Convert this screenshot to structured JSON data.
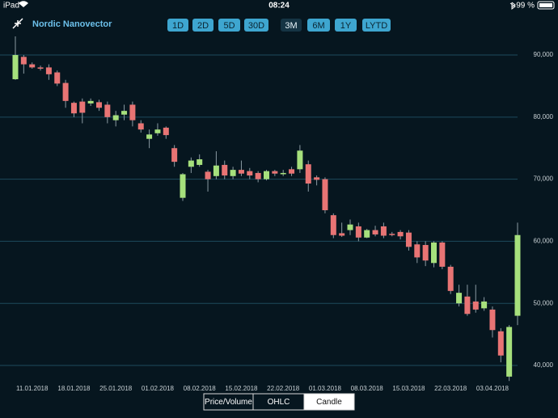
{
  "status_bar": {
    "device": "iPad",
    "time": "08:24",
    "battery": "99 %"
  },
  "header": {
    "title": "Nordic Nanovector"
  },
  "range_buttons": [
    "1D",
    "2D",
    "5D",
    "30D",
    "3M",
    "6M",
    "1Y",
    "LYTD"
  ],
  "selected_range": 4,
  "view_tabs": [
    "Price/Volume",
    "OHLC",
    "Candle"
  ],
  "selected_view": 2,
  "chart_data": {
    "type": "candlestick",
    "categories": [
      null,
      null,
      "11.01.2018",
      null,
      null,
      null,
      null,
      "18.01.2018",
      null,
      null,
      null,
      null,
      "25.01.2018",
      null,
      null,
      null,
      null,
      "01.02.2018",
      null,
      null,
      null,
      null,
      "08.02.2018",
      null,
      null,
      null,
      null,
      "15.02.2018",
      null,
      null,
      null,
      null,
      "22.02.2018",
      null,
      null,
      null,
      null,
      "01.03.2018",
      null,
      null,
      null,
      null,
      "08.03.2018",
      null,
      null,
      null,
      null,
      "15.03.2018",
      null,
      null,
      null,
      null,
      "22.03.2018",
      null,
      null,
      null,
      null,
      "03.04.2018",
      null,
      null,
      null
    ],
    "open": [
      86100,
      89700,
      88500,
      88000,
      88000,
      87200,
      85500,
      82300,
      82500,
      82200,
      82400,
      82000,
      79500,
      80400,
      82000,
      79000,
      76500,
      77400,
      78300,
      75000,
      67000,
      72000,
      72300,
      71200,
      70500,
      72300,
      70500,
      71500,
      71300,
      71000,
      70000,
      71300,
      70800,
      71600,
      71600,
      72400,
      70300,
      70000,
      64200,
      61300,
      61800,
      62400,
      60600,
      61800,
      62400,
      61200,
      61500,
      61400,
      59500,
      59400,
      56500,
      59800,
      55900,
      50000,
      51100,
      50300,
      49200,
      49000,
      45500,
      38200,
      48000
    ],
    "high": [
      93000,
      90000,
      88800,
      88300,
      88500,
      87500,
      86000,
      82500,
      83000,
      83000,
      82800,
      82500,
      81000,
      82000,
      82500,
      79500,
      78000,
      79000,
      78500,
      75500,
      71000,
      73500,
      74000,
      71500,
      74500,
      73000,
      72000,
      73000,
      71800,
      71300,
      71500,
      71500,
      71500,
      72000,
      75500,
      73000,
      70600,
      70300,
      64500,
      63000,
      63500,
      63000,
      62000,
      62500,
      63000,
      61500,
      61800,
      61800,
      60000,
      60000,
      60000,
      60000,
      56200,
      53000,
      53000,
      53000,
      51000,
      49500,
      46000,
      46500,
      63000
    ],
    "low": [
      86000,
      87000,
      87800,
      87500,
      86000,
      85000,
      81500,
      80000,
      79000,
      81800,
      81000,
      79000,
      78500,
      79500,
      78500,
      77500,
      75000,
      77000,
      76500,
      72000,
      66500,
      71000,
      72000,
      68000,
      70000,
      70000,
      70000,
      70500,
      70000,
      69500,
      69800,
      70500,
      70500,
      70500,
      71000,
      68000,
      69000,
      64500,
      60500,
      60700,
      61000,
      60000,
      60500,
      60800,
      60500,
      60800,
      60300,
      58500,
      56500,
      56000,
      55800,
      55500,
      51500,
      49500,
      48000,
      48500,
      48800,
      44500,
      40500,
      37500,
      46500
    ],
    "close": [
      90000,
      88500,
      88000,
      87800,
      86900,
      85400,
      82600,
      80600,
      80700,
      82600,
      81500,
      80000,
      80300,
      81000,
      79500,
      78000,
      77200,
      78000,
      77100,
      72800,
      70800,
      73000,
      73200,
      70000,
      72200,
      70600,
      71500,
      70900,
      70600,
      70000,
      71300,
      70900,
      71000,
      70900,
      74600,
      69300,
      69900,
      65000,
      61000,
      60900,
      62700,
      60600,
      61800,
      61100,
      60900,
      61000,
      60800,
      59100,
      57400,
      56900,
      59800,
      55900,
      52000,
      51700,
      48300,
      49000,
      50300,
      45700,
      41600,
      46200,
      61000
    ],
    "up_color": "#a6e07c",
    "down_color": "#e87474",
    "ylim": [
      37500,
      93000
    ],
    "yticks": [
      {
        "value": 40000,
        "label": "40,000"
      },
      {
        "value": 50000,
        "label": "50,000"
      },
      {
        "value": 60000,
        "label": "60,000"
      },
      {
        "value": 70000,
        "label": "70,000"
      },
      {
        "value": 80000,
        "label": "80,000"
      },
      {
        "value": 90000,
        "label": "90,000"
      }
    ],
    "grid": true
  }
}
